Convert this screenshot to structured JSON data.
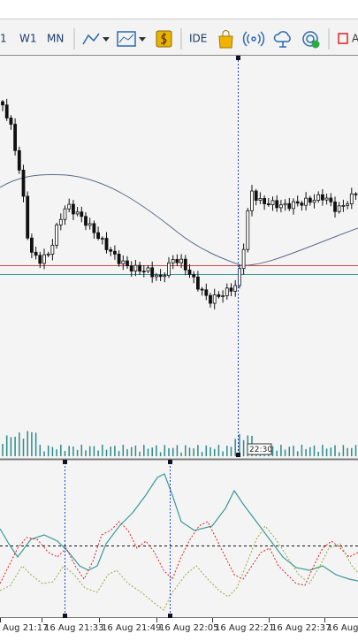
{
  "toolbar": {
    "timeframes": [
      "1",
      "W1",
      "MN"
    ],
    "ide": "IDE"
  },
  "chart": {
    "time_label": "22:30",
    "x_labels": [
      "Aug 21:17",
      "16 Aug 21:33",
      "16 Aug 21:49",
      "16 Aug 22:05",
      "16 Aug 22:21",
      "16 Aug 22:37",
      "16 Aug 2"
    ]
  }
}
